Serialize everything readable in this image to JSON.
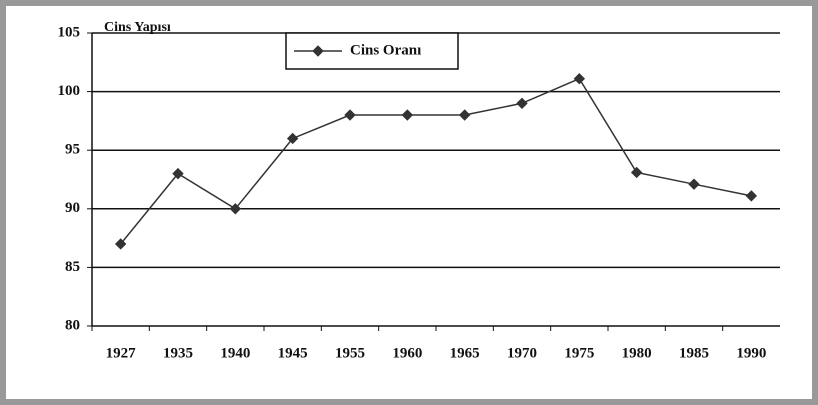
{
  "chart_data": {
    "type": "line",
    "title": "Cins Yapısı",
    "categories": [
      "1927",
      "1935",
      "1940",
      "1945",
      "1955",
      "1960",
      "1965",
      "1970",
      "1975",
      "1980",
      "1985",
      "1990"
    ],
    "series": [
      {
        "name": "Cins Oranı",
        "color": "#333333",
        "values": [
          87,
          93,
          90,
          96,
          98,
          98,
          98,
          99,
          101.1,
          93.1,
          92.1,
          91.1
        ]
      }
    ],
    "ylim": [
      80,
      105
    ],
    "yticks": [
      80,
      85,
      90,
      95,
      100,
      105
    ],
    "grid": true,
    "legend": "top"
  }
}
